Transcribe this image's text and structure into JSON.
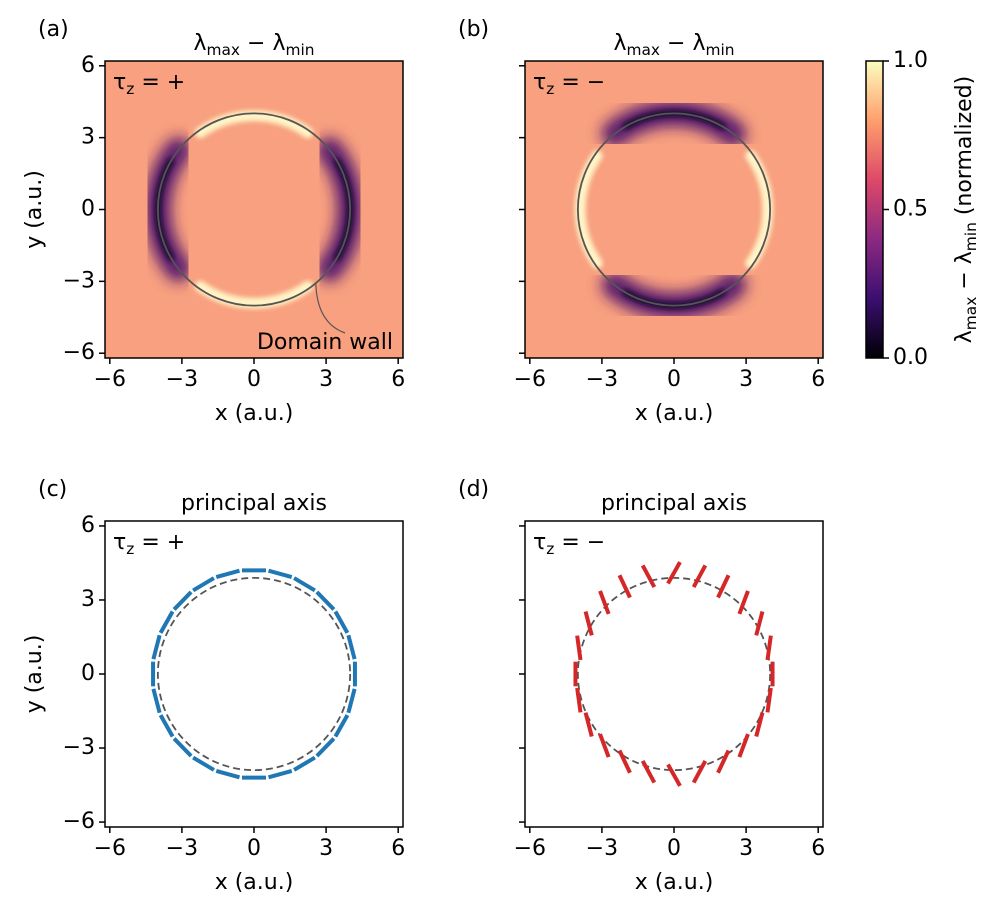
{
  "chart_data": [
    {
      "type": "heatmap",
      "panel_label": "(a)",
      "title": "λmax − λmin",
      "annotation": "τz = +",
      "wall_label": "Domain wall",
      "domain_wall_radius": 4,
      "xlabel": "x (a.u.)",
      "ylabel": "y (a.u.)",
      "xlim": [
        -6.2,
        6.2
      ],
      "ylim": [
        -6.2,
        6.2
      ],
      "xticks": [
        {
          "value": -6,
          "label": "−6"
        },
        {
          "value": -3,
          "label": "−3"
        },
        0,
        3,
        6
      ],
      "yticks": [
        {
          "value": -6,
          "label": "−6"
        },
        {
          "value": -3,
          "label": "−3"
        },
        0,
        3,
        6
      ]
    },
    {
      "type": "heatmap",
      "panel_label": "(b)",
      "title": "λmax − λmin",
      "annotation": "τz = −",
      "domain_wall_radius": 4,
      "xlabel": "x (a.u.)",
      "xlim": [
        -6.2,
        6.2
      ],
      "ylim": [
        -6.2,
        6.2
      ],
      "xticks": [
        {
          "value": -6,
          "label": "−6"
        },
        {
          "value": -3,
          "label": "−3"
        },
        0,
        3,
        6
      ],
      "yticks": [
        -6,
        -3,
        0,
        3,
        6
      ],
      "ytick_labels": false
    },
    {
      "type": "segments",
      "panel_label": "(c)",
      "title": "principal axis",
      "annotation": "τz = +",
      "color": "#1f77b4",
      "domain_wall_radius": 4,
      "radius": 4.2,
      "length": 1.0,
      "theta": [
        0,
        15,
        30,
        45,
        60,
        75,
        90,
        105,
        120,
        135,
        150,
        165,
        180,
        195,
        210,
        225,
        240,
        255,
        270,
        285,
        300,
        315,
        330,
        345
      ],
      "orientation": [
        90,
        105,
        120,
        135,
        150,
        165,
        0,
        15,
        30,
        45,
        60,
        75,
        90,
        105,
        120,
        135,
        150,
        165,
        0,
        15,
        30,
        45,
        60,
        75
      ],
      "xlabel": "x (a.u.)",
      "ylabel": "y (a.u.)",
      "xlim": [
        -6.2,
        6.2
      ],
      "ylim": [
        -6.2,
        6.2
      ],
      "xticks": [
        {
          "value": -6,
          "label": "−6"
        },
        {
          "value": -3,
          "label": "−3"
        },
        0,
        3,
        6
      ],
      "yticks": [
        {
          "value": -6,
          "label": "−6"
        },
        {
          "value": -3,
          "label": "−3"
        },
        0,
        3,
        6
      ]
    },
    {
      "type": "segments",
      "panel_label": "(d)",
      "title": "principal axis",
      "annotation": "τz = −",
      "color": "#d62728",
      "domain_wall_radius": 4,
      "radius": 4.1,
      "length": 1.0,
      "theta": [
        0,
        15,
        30,
        45,
        60,
        75,
        90,
        105,
        120,
        135,
        150,
        165,
        180,
        195,
        210,
        225,
        240,
        255,
        270,
        285,
        300,
        315,
        330,
        345
      ],
      "orientation": [
        90,
        82,
        75,
        69,
        64,
        61,
        60,
        119,
        116,
        111,
        105,
        98,
        90,
        98,
        105,
        111,
        116,
        119,
        120,
        61,
        64,
        69,
        75,
        82
      ],
      "xlabel": "x (a.u.)",
      "xlim": [
        -6.2,
        6.2
      ],
      "ylim": [
        -6.2,
        6.2
      ],
      "xticks": [
        {
          "value": -6,
          "label": "−6"
        },
        {
          "value": -3,
          "label": "−3"
        },
        0,
        3,
        6
      ],
      "yticks": [
        -6,
        -3,
        0,
        3,
        6
      ],
      "ytick_labels": false
    },
    {
      "type": "colorbar",
      "colormap": "magma",
      "ylabel": "λmax − λmin (normalized)",
      "ylim": [
        0,
        1
      ],
      "yticks": [
        {
          "value": 0,
          "label": "0.0"
        },
        0.5,
        {
          "value": 1,
          "label": "1.0"
        }
      ]
    }
  ]
}
